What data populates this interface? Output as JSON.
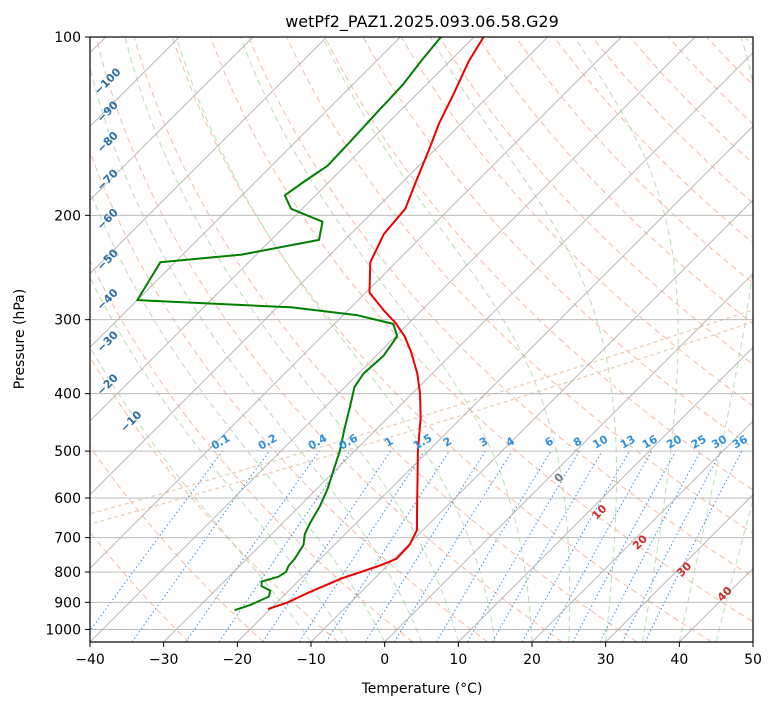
{
  "chart_data": {
    "type": "skew-t log-p",
    "title": "wetPf2_PAZ1.2025.093.06.58.G29",
    "xlabel": "Temperature (°C)",
    "ylabel": "Pressure (hPa)",
    "xlim": [
      -40,
      50
    ],
    "ylim": [
      1050,
      100
    ],
    "x_scale": "linear (skewed isotherms)",
    "y_scale": "log",
    "grid": true,
    "x_ticks": [
      "−40",
      "−30",
      "−20",
      "−10",
      "0",
      "10",
      "20",
      "30",
      "40",
      "50"
    ],
    "x_tick_values": [
      -40,
      -30,
      -20,
      -10,
      0,
      10,
      20,
      30,
      40,
      50
    ],
    "y_ticks": [
      "100",
      "200",
      "300",
      "400",
      "500",
      "600",
      "700",
      "800",
      "900",
      "1000"
    ],
    "y_tick_values": [
      100,
      200,
      300,
      400,
      500,
      600,
      700,
      800,
      900,
      1000
    ],
    "series": [
      {
        "role": "temperature",
        "color": "#ee0000",
        "points": [
          [
            924,
            -20.3
          ],
          [
            900,
            -18.5
          ],
          [
            870,
            -17.2
          ],
          [
            820,
            -14.5
          ],
          [
            780,
            -11.0
          ],
          [
            760,
            -9.7
          ],
          [
            720,
            -9.8
          ],
          [
            680,
            -10.8
          ],
          [
            620,
            -14.0
          ],
          [
            560,
            -17.5
          ],
          [
            500,
            -21.4
          ],
          [
            440,
            -25.5
          ],
          [
            400,
            -28.9
          ],
          [
            370,
            -32.0
          ],
          [
            340,
            -35.8
          ],
          [
            320,
            -38.8
          ],
          [
            303,
            -42.0
          ],
          [
            290,
            -45.0
          ],
          [
            270,
            -49.5
          ],
          [
            240,
            -53.5
          ],
          [
            215,
            -55.5
          ],
          [
            195,
            -56.0
          ],
          [
            175,
            -58.3
          ],
          [
            155,
            -60.8
          ],
          [
            140,
            -63.0
          ],
          [
            125,
            -65.0
          ],
          [
            110,
            -67.4
          ],
          [
            100,
            -68.7
          ]
        ]
      },
      {
        "role": "dewpoint",
        "color": "#008000",
        "points": [
          [
            928,
            -24.7
          ],
          [
            910,
            -23.3
          ],
          [
            880,
            -21.9
          ],
          [
            860,
            -22.5
          ],
          [
            845,
            -24.3
          ],
          [
            830,
            -24.9
          ],
          [
            815,
            -23.3
          ],
          [
            800,
            -22.9
          ],
          [
            780,
            -23.4
          ],
          [
            760,
            -23.5
          ],
          [
            720,
            -24.2
          ],
          [
            690,
            -25.5
          ],
          [
            660,
            -26.3
          ],
          [
            620,
            -27.2
          ],
          [
            580,
            -28.5
          ],
          [
            540,
            -30.2
          ],
          [
            500,
            -32.0
          ],
          [
            460,
            -34.3
          ],
          [
            420,
            -36.7
          ],
          [
            390,
            -38.7
          ],
          [
            370,
            -39.3
          ],
          [
            345,
            -39.0
          ],
          [
            320,
            -39.8
          ],
          [
            305,
            -42.0
          ],
          [
            295,
            -48.0
          ],
          [
            286,
            -58.0
          ],
          [
            278,
            -80.0
          ],
          [
            240,
            -82.0
          ],
          [
            233,
            -72.0
          ],
          [
            220,
            -63.5
          ],
          [
            205,
            -65.5
          ],
          [
            195,
            -71.5
          ],
          [
            185,
            -74.2
          ],
          [
            175,
            -73.4
          ],
          [
            165,
            -72.4
          ],
          [
            150,
            -72.6
          ],
          [
            135,
            -72.9
          ],
          [
            120,
            -73.2
          ],
          [
            110,
            -73.9
          ],
          [
            100,
            -74.5
          ]
        ]
      }
    ],
    "dry_adiabat_labels": [
      "−100",
      "−90",
      "−80",
      "−70",
      "−60",
      "−50",
      "−40",
      "−30",
      "−20",
      "−10"
    ],
    "mixing_ratio_labels": [
      "0.1",
      "0.2",
      "0.4",
      "0.6",
      "1",
      "1.5",
      "2",
      "3",
      "4",
      "6",
      "8",
      "10",
      "13",
      "16",
      "20",
      "25",
      "30",
      "36"
    ],
    "moist_adiabat_labels": [
      "0",
      "10",
      "20",
      "30",
      "40"
    ],
    "colors": {
      "isotherm": "#b0b0b0",
      "isobar": "#b0b0b0",
      "dry_adiabat": "#f4a582",
      "moist_adiabat": "#a6d6a0",
      "mixing_ratio": "#3a8ee6",
      "reference_curve": "#e8c8a8",
      "dry_label": "#2a6fa6",
      "mixing_label": "#2f8fe0",
      "moist_label_zero": "#7a7a7a",
      "moist_label": "#cc2a2a"
    }
  }
}
